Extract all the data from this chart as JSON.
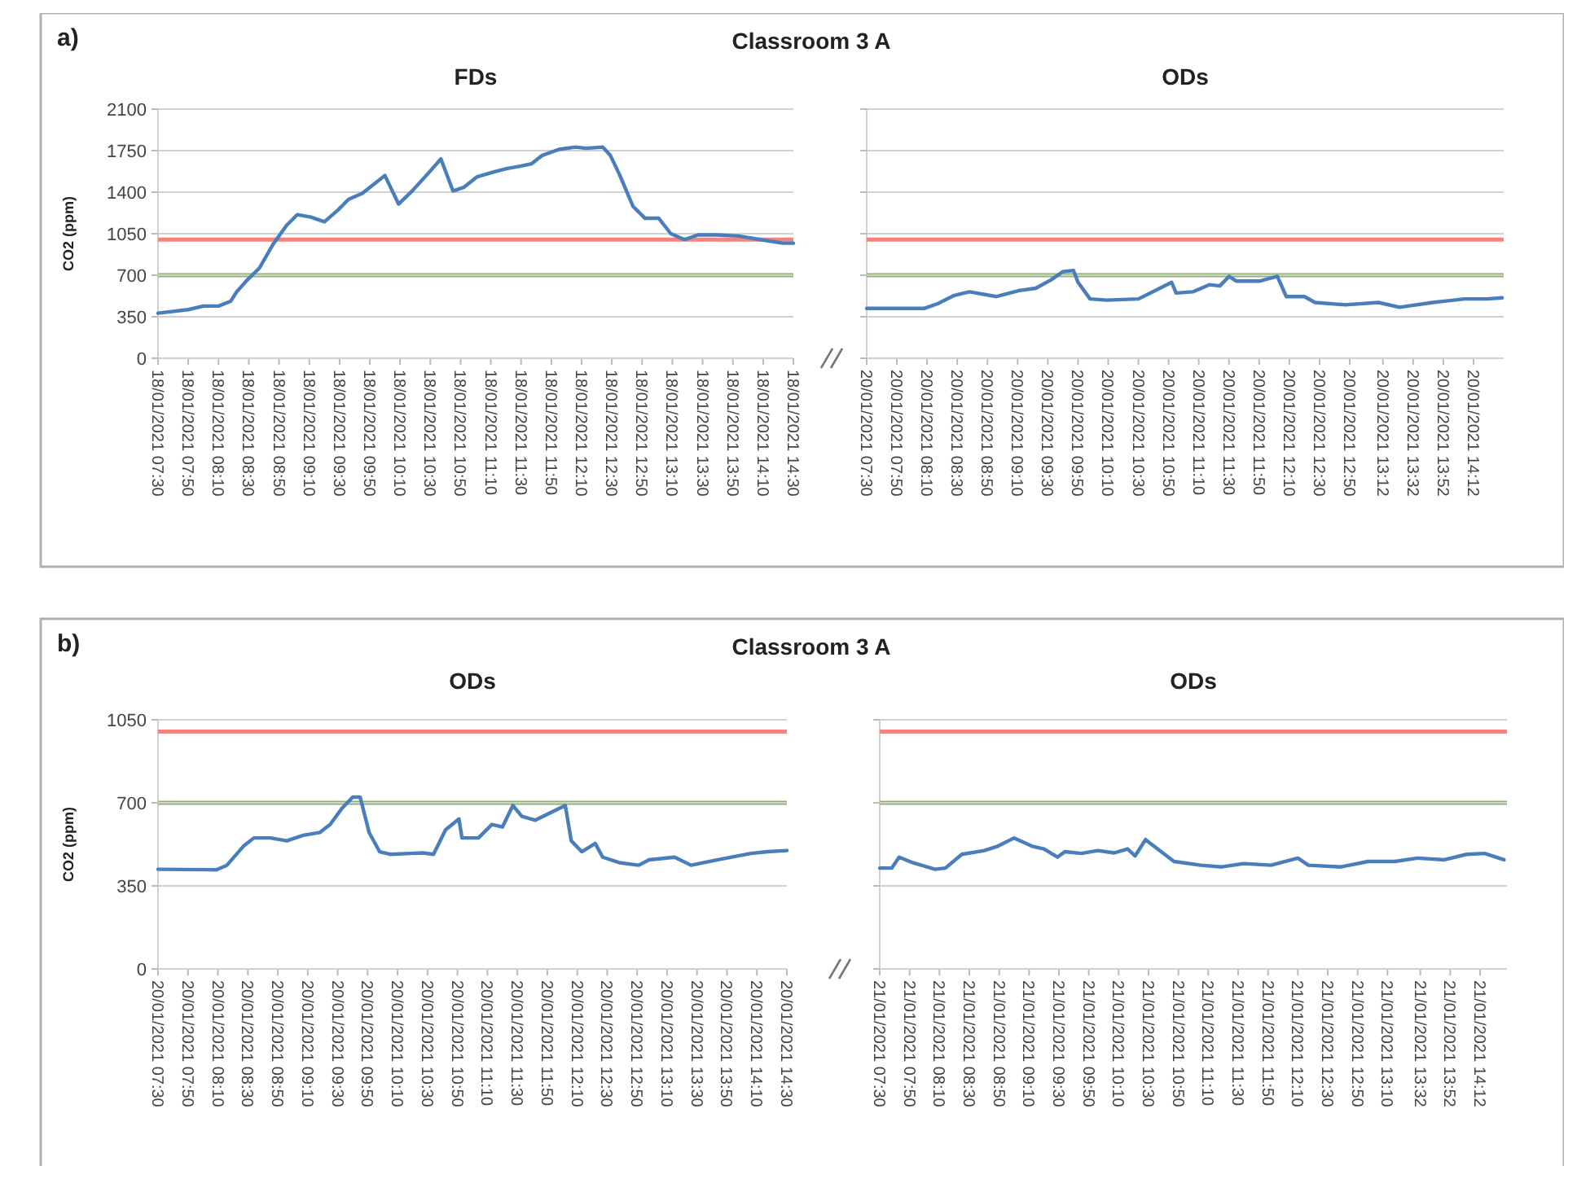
{
  "chart_data": [
    {
      "type": "line",
      "title": "Classroom 3 A",
      "subtitle": "FDs",
      "annotations": [
        "a)"
      ],
      "ylabel": "CO2 (ppm)",
      "grid": "y",
      "line_style": "solid",
      "xlim": [
        "2021-01-18T07:30",
        "2021-01-18T14:30"
      ],
      "xticks": [
        {
          "value": "2021-01-18T07:30",
          "label": "18/01/2021 07:30"
        },
        {
          "value": "2021-01-18T07:50",
          "label": "18/01/2021 07:50"
        },
        {
          "value": "2021-01-18T08:10",
          "label": "18/01/2021 08:10"
        },
        {
          "value": "2021-01-18T08:30",
          "label": "18/01/2021 08:30"
        },
        {
          "value": "2021-01-18T08:50",
          "label": "18/01/2021 08:50"
        },
        {
          "value": "2021-01-18T09:10",
          "label": "18/01/2021 09:10"
        },
        {
          "value": "2021-01-18T09:30",
          "label": "18/01/2021 09:30"
        },
        {
          "value": "2021-01-18T09:50",
          "label": "18/01/2021 09:50"
        },
        {
          "value": "2021-01-18T10:10",
          "label": "18/01/2021 10:10"
        },
        {
          "value": "2021-01-18T10:30",
          "label": "18/01/2021 10:30"
        },
        {
          "value": "2021-01-18T10:50",
          "label": "18/01/2021 10:50"
        },
        {
          "value": "2021-01-18T11:10",
          "label": "18/01/2021 11:10"
        },
        {
          "value": "2021-01-18T11:30",
          "label": "18/01/2021 11:30"
        },
        {
          "value": "2021-01-18T11:50",
          "label": "18/01/2021 11:50"
        },
        {
          "value": "2021-01-18T12:10",
          "label": "18/01/2021 12:10"
        },
        {
          "value": "2021-01-18T12:30",
          "label": "18/01/2021 12:30"
        },
        {
          "value": "2021-01-18T12:50",
          "label": "18/01/2021 12:50"
        },
        {
          "value": "2021-01-18T13:10",
          "label": "18/01/2021 13:10"
        },
        {
          "value": "2021-01-18T13:30",
          "label": "18/01/2021 13:30"
        },
        {
          "value": "2021-01-18T13:50",
          "label": "18/01/2021 13:50"
        },
        {
          "value": "2021-01-18T14:10",
          "label": "18/01/2021 14:10"
        },
        {
          "value": "2021-01-18T14:30",
          "label": "18/01/2021 14:30"
        }
      ],
      "ylim": [
        0,
        2100
      ],
      "yticks": [
        0,
        350,
        700,
        1050,
        1400,
        1750,
        2100
      ],
      "ref_lines": [
        {
          "axis": "y",
          "value": 1000,
          "color": "#f4837d"
        },
        {
          "axis": "y",
          "value": 700,
          "color": "#8db36a"
        }
      ],
      "series": [
        {
          "type": "line",
          "color": "#4a7ebb",
          "x": [
            "2021-01-18T07:30",
            "2021-01-18T07:50",
            "2021-01-18T08:00",
            "2021-01-18T08:10",
            "2021-01-18T08:18",
            "2021-01-18T08:22",
            "2021-01-18T08:29",
            "2021-01-18T08:37",
            "2021-01-18T08:46",
            "2021-01-18T08:55",
            "2021-01-18T09:02",
            "2021-01-18T09:11",
            "2021-01-18T09:20",
            "2021-01-18T09:29",
            "2021-01-18T09:36",
            "2021-01-18T09:45",
            "2021-01-18T09:52",
            "2021-01-18T10:00",
            "2021-01-18T10:09",
            "2021-01-18T10:18",
            "2021-01-18T10:28",
            "2021-01-18T10:37",
            "2021-01-18T10:45",
            "2021-01-18T10:52",
            "2021-01-18T11:01",
            "2021-01-18T11:12",
            "2021-01-18T11:21",
            "2021-01-18T11:30",
            "2021-01-18T11:37",
            "2021-01-18T11:44",
            "2021-01-18T11:55",
            "2021-01-18T12:06",
            "2021-01-18T12:13",
            "2021-01-18T12:24",
            "2021-01-18T12:29",
            "2021-01-18T12:35",
            "2021-01-18T12:44",
            "2021-01-18T12:52",
            "2021-01-18T13:01",
            "2021-01-18T13:09",
            "2021-01-18T13:18",
            "2021-01-18T13:27",
            "2021-01-18T13:39",
            "2021-01-18T13:54",
            "2021-01-18T14:08",
            "2021-01-18T14:23",
            "2021-01-18T14:30"
          ],
          "values": [
            380,
            410,
            440,
            440,
            480,
            560,
            660,
            760,
            960,
            1120,
            1210,
            1190,
            1150,
            1250,
            1340,
            1390,
            1460,
            1540,
            1300,
            1410,
            1550,
            1680,
            1410,
            1440,
            1530,
            1570,
            1600,
            1620,
            1640,
            1710,
            1760,
            1780,
            1770,
            1780,
            1710,
            1550,
            1280,
            1180,
            1180,
            1050,
            1000,
            1040,
            1040,
            1030,
            1000,
            970,
            970
          ]
        }
      ]
    },
    {
      "type": "line",
      "title": "ODs",
      "tick_labels": "x",
      "grid": "y",
      "line_style": "solid",
      "xlim": [
        "2021-01-20T07:30",
        "2021-01-20T14:32"
      ],
      "xticks": [
        {
          "value": "2021-01-20T07:30",
          "label": "20/01/2021 07:30"
        },
        {
          "value": "2021-01-20T07:50",
          "label": "20/01/2021 07:50"
        },
        {
          "value": "2021-01-20T08:10",
          "label": "20/01/2021 08:10"
        },
        {
          "value": "2021-01-20T08:30",
          "label": "20/01/2021 08:30"
        },
        {
          "value": "2021-01-20T08:50",
          "label": "20/01/2021 08:50"
        },
        {
          "value": "2021-01-20T09:10",
          "label": "20/01/2021 09:10"
        },
        {
          "value": "2021-01-20T09:30",
          "label": "20/01/2021 09:30"
        },
        {
          "value": "2021-01-20T09:50",
          "label": "20/01/2021 09:50"
        },
        {
          "value": "2021-01-20T10:10",
          "label": "20/01/2021 10:10"
        },
        {
          "value": "2021-01-20T10:30",
          "label": "20/01/2021 10:30"
        },
        {
          "value": "2021-01-20T10:50",
          "label": "20/01/2021 10:50"
        },
        {
          "value": "2021-01-20T11:10",
          "label": "20/01/2021 11:10"
        },
        {
          "value": "2021-01-20T11:30",
          "label": "20/01/2021 11:30"
        },
        {
          "value": "2021-01-20T11:50",
          "label": "20/01/2021 11:50"
        },
        {
          "value": "2021-01-20T12:10",
          "label": "20/01/2021 12:10"
        },
        {
          "value": "2021-01-20T12:30",
          "label": "20/01/2021 12:30"
        },
        {
          "value": "2021-01-20T12:50",
          "label": "20/01/2021 12:50"
        },
        {
          "value": "2021-01-20T13:12",
          "label": "20/01/2021 13:12"
        },
        {
          "value": "2021-01-20T13:32",
          "label": "20/01/2021 13:32"
        },
        {
          "value": "2021-01-20T13:52",
          "label": "20/01/2021 13:52"
        },
        {
          "value": "2021-01-20T14:12",
          "label": "20/01/2021 14:12"
        }
      ],
      "ylim": [
        0,
        2100
      ],
      "yticks": [
        0,
        350,
        700,
        1050,
        1400,
        1750,
        2100
      ],
      "ref_lines": [
        {
          "axis": "y",
          "value": 1000,
          "color": "#f4837d"
        },
        {
          "axis": "y",
          "value": 700,
          "color": "#8db36a"
        }
      ],
      "series": [
        {
          "type": "line",
          "color": "#4a7ebb",
          "x": [
            "2021-01-20T07:30",
            "2021-01-20T08:08",
            "2021-01-20T08:17",
            "2021-01-20T08:28",
            "2021-01-20T08:38",
            "2021-01-20T08:56",
            "2021-01-20T09:11",
            "2021-01-20T09:22",
            "2021-01-20T09:32",
            "2021-01-20T09:40",
            "2021-01-20T09:47",
            "2021-01-20T09:50",
            "2021-01-20T09:58",
            "2021-01-20T10:09",
            "2021-01-20T10:30",
            "2021-01-20T10:41",
            "2021-01-20T10:52",
            "2021-01-20T10:55",
            "2021-01-20T11:06",
            "2021-01-20T11:17",
            "2021-01-20T11:24",
            "2021-01-20T11:30",
            "2021-01-20T11:35",
            "2021-01-20T11:50",
            "2021-01-20T12:02",
            "2021-01-20T12:08",
            "2021-01-20T12:20",
            "2021-01-20T12:27",
            "2021-01-20T12:47",
            "2021-01-20T13:09",
            "2021-01-20T13:23",
            "2021-01-20T13:45",
            "2021-01-20T14:06",
            "2021-01-20T14:21",
            "2021-01-20T14:31"
          ],
          "values": [
            420,
            420,
            460,
            530,
            560,
            520,
            570,
            590,
            660,
            730,
            740,
            640,
            500,
            490,
            500,
            570,
            640,
            550,
            560,
            620,
            610,
            690,
            650,
            650,
            690,
            520,
            520,
            470,
            450,
            470,
            430,
            470,
            500,
            500,
            510
          ]
        }
      ]
    },
    {
      "type": "line",
      "title": "Classroom 3 A",
      "subtitle": "ODs",
      "annotations": [
        "b)"
      ],
      "ylabel": "CO2 (ppm)",
      "grid": "y",
      "line_style": "solid",
      "xlim": [
        "2021-01-20T07:30",
        "2021-01-20T14:30"
      ],
      "xticks": [
        {
          "value": "2021-01-20T07:30",
          "label": "20/01/2021 07:30"
        },
        {
          "value": "2021-01-20T07:50",
          "label": "20/01/2021 07:50"
        },
        {
          "value": "2021-01-20T08:10",
          "label": "20/01/2021 08:10"
        },
        {
          "value": "2021-01-20T08:30",
          "label": "20/01/2021 08:30"
        },
        {
          "value": "2021-01-20T08:50",
          "label": "20/01/2021 08:50"
        },
        {
          "value": "2021-01-20T09:10",
          "label": "20/01/2021 09:10"
        },
        {
          "value": "2021-01-20T09:30",
          "label": "20/01/2021 09:30"
        },
        {
          "value": "2021-01-20T09:50",
          "label": "20/01/2021 09:50"
        },
        {
          "value": "2021-01-20T10:10",
          "label": "20/01/2021 10:10"
        },
        {
          "value": "2021-01-20T10:30",
          "label": "20/01/2021 10:30"
        },
        {
          "value": "2021-01-20T10:50",
          "label": "20/01/2021 10:50"
        },
        {
          "value": "2021-01-20T11:10",
          "label": "20/01/2021 11:10"
        },
        {
          "value": "2021-01-20T11:30",
          "label": "20/01/2021 11:30"
        },
        {
          "value": "2021-01-20T11:50",
          "label": "20/01/2021 11:50"
        },
        {
          "value": "2021-01-20T12:10",
          "label": "20/01/2021 12:10"
        },
        {
          "value": "2021-01-20T12:30",
          "label": "20/01/2021 12:30"
        },
        {
          "value": "2021-01-20T12:50",
          "label": "20/01/2021 12:50"
        },
        {
          "value": "2021-01-20T13:10",
          "label": "20/01/2021 13:10"
        },
        {
          "value": "2021-01-20T13:30",
          "label": "20/01/2021 13:30"
        },
        {
          "value": "2021-01-20T13:50",
          "label": "20/01/2021 13:50"
        },
        {
          "value": "2021-01-20T14:10",
          "label": "20/01/2021 14:10"
        },
        {
          "value": "2021-01-20T14:30",
          "label": "20/01/2021 14:30"
        }
      ],
      "ylim": [
        0,
        1050
      ],
      "yticks": [
        0,
        350,
        700,
        1050
      ],
      "ref_lines": [
        {
          "axis": "y",
          "value": 1000,
          "color": "#f4837d"
        },
        {
          "axis": "y",
          "value": 700,
          "color": "#8db36a"
        }
      ],
      "series": [
        {
          "type": "line",
          "color": "#4a7ebb",
          "x": [
            "2021-01-20T07:30",
            "2021-01-20T08:09",
            "2021-01-20T08:16",
            "2021-01-20T08:27",
            "2021-01-20T08:34",
            "2021-01-20T08:45",
            "2021-01-20T08:56",
            "2021-01-20T09:07",
            "2021-01-20T09:18",
            "2021-01-20T09:25",
            "2021-01-20T09:33",
            "2021-01-20T09:40",
            "2021-01-20T09:45",
            "2021-01-20T09:51",
            "2021-01-20T09:58",
            "2021-01-20T10:05",
            "2021-01-20T10:27",
            "2021-01-20T10:34",
            "2021-01-20T10:42",
            "2021-01-20T10:51",
            "2021-01-20T10:53",
            "2021-01-20T11:04",
            "2021-01-20T11:13",
            "2021-01-20T11:20",
            "2021-01-20T11:27",
            "2021-01-20T11:33",
            "2021-01-20T11:42",
            "2021-01-20T12:02",
            "2021-01-20T12:06",
            "2021-01-20T12:13",
            "2021-01-20T12:22",
            "2021-01-20T12:27",
            "2021-01-20T12:38",
            "2021-01-20T12:51",
            "2021-01-20T12:58",
            "2021-01-20T13:15",
            "2021-01-20T13:26",
            "2021-01-20T13:44",
            "2021-01-20T14:06",
            "2021-01-20T14:17",
            "2021-01-20T14:30"
          ],
          "values": [
            420,
            418,
            437,
            517,
            552,
            552,
            540,
            563,
            575,
            609,
            678,
            724,
            724,
            575,
            494,
            483,
            489,
            483,
            586,
            632,
            552,
            552,
            609,
            598,
            689,
            643,
            627,
            689,
            540,
            494,
            529,
            471,
            448,
            437,
            460,
            471,
            437,
            460,
            487,
            494,
            499
          ]
        }
      ]
    },
    {
      "type": "line",
      "title": "ODs",
      "tick_labels": "x",
      "grid": "y",
      "line_style": "solid",
      "xlim": [
        "2021-01-21T07:30",
        "2021-01-21T14:30"
      ],
      "xticks": [
        {
          "value": "2021-01-21T07:30",
          "label": "21/01/2021 07:30"
        },
        {
          "value": "2021-01-21T07:50",
          "label": "21/01/2021 07:50"
        },
        {
          "value": "2021-01-21T08:10",
          "label": "21/01/2021 08:10"
        },
        {
          "value": "2021-01-21T08:30",
          "label": "21/01/2021 08:30"
        },
        {
          "value": "2021-01-21T08:50",
          "label": "21/01/2021 08:50"
        },
        {
          "value": "2021-01-21T09:10",
          "label": "21/01/2021 09:10"
        },
        {
          "value": "2021-01-21T09:30",
          "label": "21/01/2021 09:30"
        },
        {
          "value": "2021-01-21T09:50",
          "label": "21/01/2021 09:50"
        },
        {
          "value": "2021-01-21T10:10",
          "label": "21/01/2021 10:10"
        },
        {
          "value": "2021-01-21T10:30",
          "label": "21/01/2021 10:30"
        },
        {
          "value": "2021-01-21T10:50",
          "label": "21/01/2021 10:50"
        },
        {
          "value": "2021-01-21T11:10",
          "label": "21/01/2021 11:10"
        },
        {
          "value": "2021-01-21T11:30",
          "label": "21/01/2021 11:30"
        },
        {
          "value": "2021-01-21T11:50",
          "label": "21/01/2021 11:50"
        },
        {
          "value": "2021-01-21T12:10",
          "label": "21/01/2021 12:10"
        },
        {
          "value": "2021-01-21T12:30",
          "label": "21/01/2021 12:30"
        },
        {
          "value": "2021-01-21T12:50",
          "label": "21/01/2021 12:50"
        },
        {
          "value": "2021-01-21T13:10",
          "label": "21/01/2021 13:10"
        },
        {
          "value": "2021-01-21T13:32",
          "label": "21/01/2021 13:32"
        },
        {
          "value": "2021-01-21T13:52",
          "label": "21/01/2021 13:52"
        },
        {
          "value": "2021-01-21T14:12",
          "label": "21/01/2021 14:12"
        }
      ],
      "ylim": [
        0,
        1050
      ],
      "yticks": [
        0,
        350,
        700,
        1050
      ],
      "ref_lines": [
        {
          "axis": "y",
          "value": 1000,
          "color": "#f4837d"
        },
        {
          "axis": "y",
          "value": 700,
          "color": "#8db36a"
        }
      ],
      "series": [
        {
          "type": "line",
          "color": "#4a7ebb",
          "x": [
            "2021-01-21T07:30",
            "2021-01-21T07:38",
            "2021-01-21T07:43",
            "2021-01-21T07:52",
            "2021-01-21T08:07",
            "2021-01-21T08:14",
            "2021-01-21T08:25",
            "2021-01-21T08:40",
            "2021-01-21T08:49",
            "2021-01-21T09:00",
            "2021-01-21T09:12",
            "2021-01-21T09:20",
            "2021-01-21T09:29",
            "2021-01-21T09:34",
            "2021-01-21T09:45",
            "2021-01-21T09:56",
            "2021-01-21T10:07",
            "2021-01-21T10:16",
            "2021-01-21T10:21",
            "2021-01-21T10:28",
            "2021-01-21T10:36",
            "2021-01-21T10:47",
            "2021-01-21T11:05",
            "2021-01-21T11:19",
            "2021-01-21T11:34",
            "2021-01-21T11:52",
            "2021-01-21T12:10",
            "2021-01-21T12:17",
            "2021-01-21T12:39",
            "2021-01-21T12:57",
            "2021-01-21T13:15",
            "2021-01-21T13:30",
            "2021-01-21T13:48",
            "2021-01-21T14:03",
            "2021-01-21T14:15",
            "2021-01-21T14:28"
          ],
          "values": [
            425,
            425,
            471,
            448,
            420,
            425,
            483,
            499,
            517,
            552,
            517,
            506,
            471,
            494,
            487,
            499,
            489,
            506,
            476,
            545,
            506,
            453,
            437,
            430,
            444,
            437,
            467,
            437,
            430,
            453,
            453,
            467,
            460,
            483,
            487,
            460
          ]
        }
      ]
    }
  ]
}
